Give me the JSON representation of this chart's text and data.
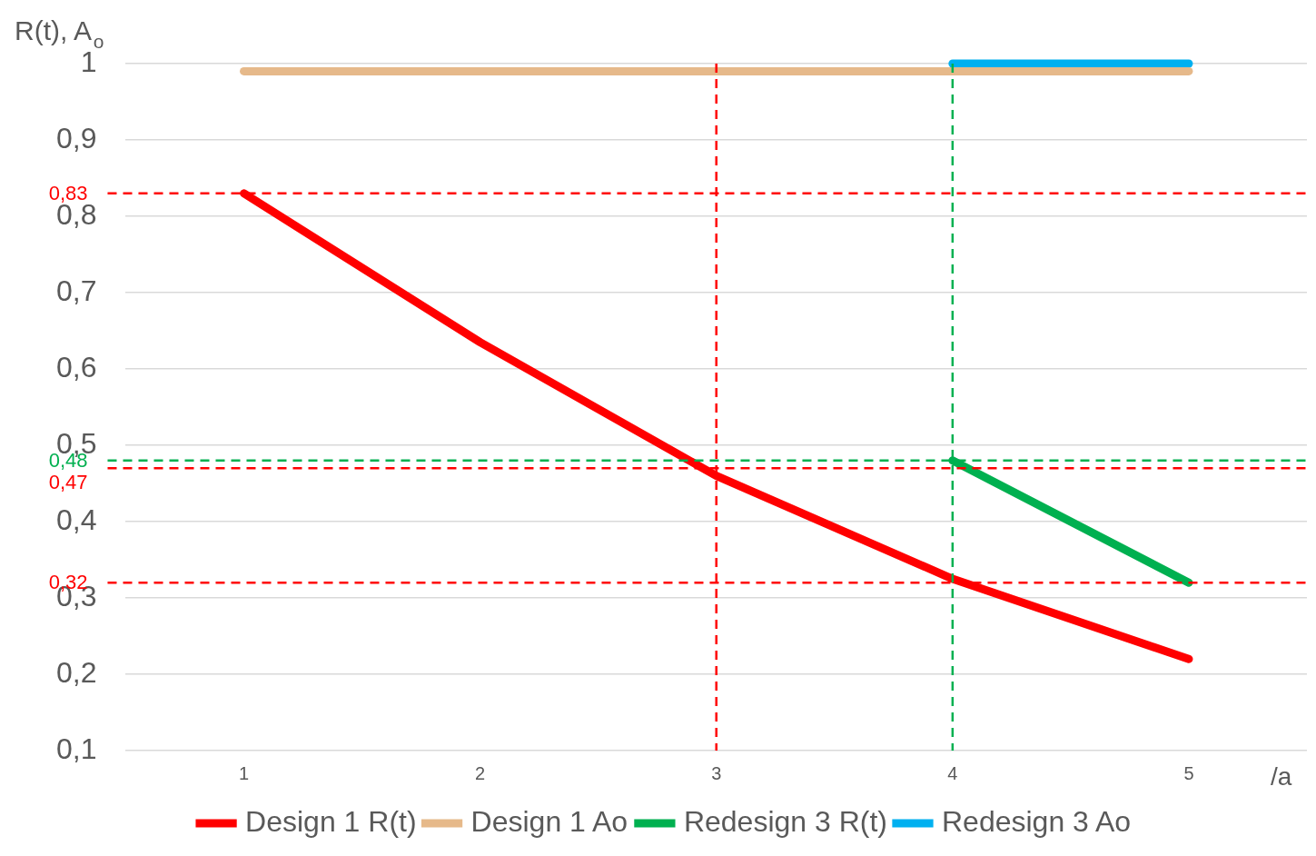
{
  "chart_data": {
    "type": "line",
    "ylabel": "R(t), A$_{o}$",
    "xlabel": "/a",
    "categories": [
      "1",
      "2",
      "3",
      "4",
      "5"
    ],
    "series": [
      {
        "name": "Design 1 R(t)",
        "color": "#ff0000",
        "values": [
          0.83,
          0.635,
          0.46,
          0.325,
          0.22
        ]
      },
      {
        "name": "Design 1 Ao",
        "color": "#e6b98a",
        "values": [
          0.99,
          0.99,
          0.99,
          0.99,
          0.99
        ]
      },
      {
        "name": "Redesign 3 R(t)",
        "color": "#00b050",
        "values": [
          null,
          null,
          null,
          0.48,
          0.32
        ]
      },
      {
        "name": "Redesign 3 Ao",
        "color": "#00b0f0",
        "values": [
          null,
          null,
          null,
          1,
          1
        ]
      }
    ],
    "ylim": [
      0.1,
      1
    ],
    "yticks": [
      {
        "value": 0.1,
        "label": "0,1"
      },
      {
        "value": 0.2,
        "label": "0,2"
      },
      {
        "value": 0.3,
        "label": "0,3"
      },
      {
        "value": 0.4,
        "label": "0,4"
      },
      {
        "value": 0.5,
        "label": "0,5"
      },
      {
        "value": 0.6,
        "label": "0,6"
      },
      {
        "value": 0.7,
        "label": "0,7"
      },
      {
        "value": 0.8,
        "label": "0,8"
      },
      {
        "value": 0.9,
        "label": "0,9"
      },
      {
        "value": 1,
        "label": "1"
      }
    ],
    "ref_lines": [
      {
        "axis": "y",
        "value": 0.83,
        "label": "0,83",
        "color": "#ff0000",
        "line_style": "dashed"
      },
      {
        "axis": "y",
        "value": 0.48,
        "label": "0,48",
        "color": "#00b050",
        "line_style": "dashed"
      },
      {
        "axis": "y",
        "value": 0.47,
        "label": "0,47",
        "color": "#ff0000",
        "line_style": "dashed"
      },
      {
        "axis": "y",
        "value": 0.32,
        "label": "0,32",
        "color": "#ff0000",
        "line_style": "dashed"
      },
      {
        "axis": "x",
        "value": "3",
        "color": "#ff0000",
        "line_style": "dashed"
      },
      {
        "axis": "x",
        "value": "4",
        "color": "#00b050",
        "line_style": "dashed"
      }
    ],
    "grid": "y",
    "legend": "bottom",
    "marker": "none",
    "line_style": "solid"
  }
}
